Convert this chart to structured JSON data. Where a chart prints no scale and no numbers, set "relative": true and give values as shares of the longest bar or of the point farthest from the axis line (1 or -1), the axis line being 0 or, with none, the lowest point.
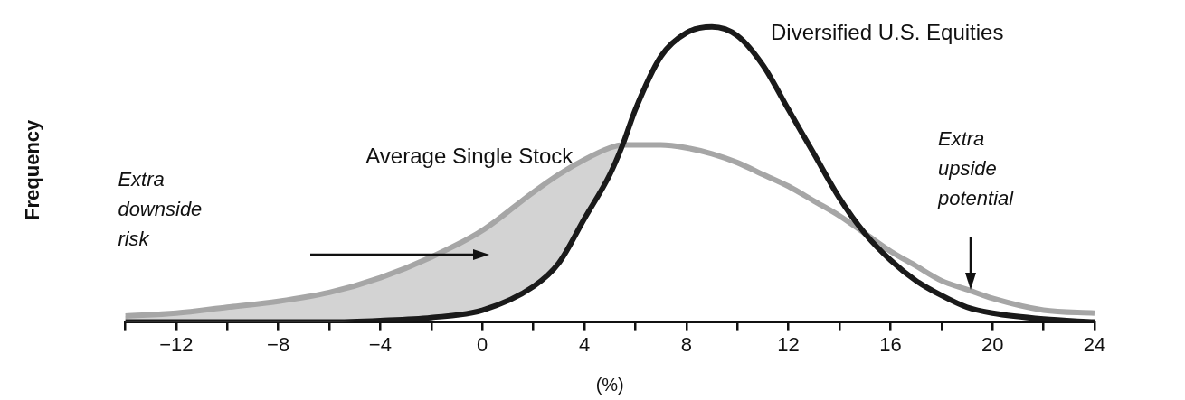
{
  "chart_data": {
    "type": "line",
    "relative": true,
    "xlabel": "(%)",
    "ylabel": "Frequency",
    "grid": false,
    "legend": false,
    "xlim": [
      -14,
      24
    ],
    "xticks": [
      {
        "value": -14,
        "label": null
      },
      -12,
      {
        "value": -10,
        "label": null
      },
      -8,
      {
        "value": -6,
        "label": null
      },
      -4,
      {
        "value": -2,
        "label": null
      },
      0,
      {
        "value": 2,
        "label": null
      },
      4,
      {
        "value": 6,
        "label": null
      },
      8,
      {
        "value": 10,
        "label": null
      },
      12,
      {
        "value": 14,
        "label": null
      },
      16,
      {
        "value": 18,
        "label": null
      },
      20,
      {
        "value": 22,
        "label": null
      },
      24
    ],
    "x": [
      -14,
      -12,
      -10,
      -8,
      -6,
      -4,
      -2,
      0,
      2,
      3,
      4,
      5,
      5.5,
      6,
      7,
      8,
      9,
      10,
      11,
      12,
      13,
      14,
      15,
      16,
      17,
      18,
      19,
      20,
      22,
      24
    ],
    "series": [
      {
        "name": "Diversified U.S. Equities",
        "color": "#1a1a1a",
        "values": [
          0,
          0,
          0,
          0,
          0,
          0.005,
          0.015,
          0.04,
          0.12,
          0.2,
          0.35,
          0.5,
          0.6,
          0.72,
          0.9,
          0.98,
          1,
          0.97,
          0.87,
          0.72,
          0.57,
          0.42,
          0.3,
          0.21,
          0.14,
          0.09,
          0.05,
          0.03,
          0.01,
          0
        ]
      },
      {
        "name": "Average Single Stock",
        "color": "#a6a6a6",
        "values": [
          0.02,
          0.03,
          0.05,
          0.07,
          0.1,
          0.15,
          0.22,
          0.31,
          0.44,
          0.5,
          0.55,
          0.59,
          0.6,
          0.6,
          0.6,
          0.59,
          0.57,
          0.54,
          0.5,
          0.46,
          0.41,
          0.36,
          0.3,
          0.24,
          0.19,
          0.14,
          0.11,
          0.08,
          0.04,
          0.03
        ],
        "lower": [
          0,
          0,
          0,
          0,
          0,
          0.005,
          0.015,
          0.04,
          0.12,
          0.2,
          0.35,
          0.5,
          0.6,
          null,
          null,
          null,
          null,
          null,
          null,
          null,
          null,
          null,
          null,
          null,
          null,
          null,
          null,
          null,
          null,
          null
        ],
        "upper": [
          0.02,
          0.03,
          0.05,
          0.07,
          0.1,
          0.15,
          0.22,
          0.31,
          0.44,
          0.5,
          0.55,
          0.59,
          0.6,
          null,
          null,
          null,
          null,
          null,
          null,
          null,
          null,
          null,
          null,
          null,
          null,
          null,
          null,
          null,
          null,
          null
        ]
      }
    ],
    "annotations": [
      "Extra\ndownside\nrisk",
      "Extra\nupside\npotential"
    ]
  }
}
